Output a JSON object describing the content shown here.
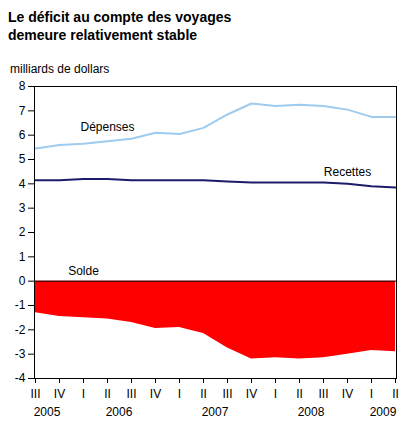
{
  "chart_data": {
    "type": "line",
    "title": "Le déficit au compte des voyages demeure relativement stable",
    "subtitle": "milliards de dollars",
    "categories": [
      "III",
      "IV",
      "I",
      "II",
      "III",
      "IV",
      "I",
      "II",
      "III",
      "IV",
      "I",
      "II",
      "III",
      "IV",
      "I",
      "II"
    ],
    "years": [
      "2005",
      "2005",
      "2006",
      "2006",
      "2006",
      "2006",
      "2007",
      "2007",
      "2007",
      "2007",
      "2008",
      "2008",
      "2008",
      "2008",
      "2009",
      "2009"
    ],
    "series": [
      {
        "name": "Dépenses",
        "color": "#9ecbee",
        "values": [
          5.45,
          5.6,
          5.65,
          5.75,
          5.85,
          6.1,
          6.05,
          6.3,
          6.85,
          7.3,
          7.2,
          7.25,
          7.2,
          7.05,
          6.75,
          6.75
        ]
      },
      {
        "name": "Recettes",
        "color": "#1c1c6b",
        "values": [
          4.15,
          4.15,
          4.2,
          4.2,
          4.15,
          4.15,
          4.15,
          4.15,
          4.1,
          4.05,
          4.05,
          4.05,
          4.05,
          4.0,
          3.9,
          3.85
        ]
      },
      {
        "name": "Solde",
        "type": "area",
        "color": "#ff0000",
        "values": [
          -1.3,
          -1.45,
          -1.5,
          -1.55,
          -1.7,
          -1.95,
          -1.9,
          -2.15,
          -2.75,
          -3.2,
          -3.15,
          -3.2,
          -3.15,
          -3.0,
          -2.85,
          -2.9
        ]
      }
    ],
    "ylim": [
      -4,
      8
    ],
    "yticks": [
      -4,
      -3,
      -2,
      -1,
      0,
      1,
      2,
      3,
      4,
      5,
      6,
      7,
      8
    ],
    "grid": false
  }
}
